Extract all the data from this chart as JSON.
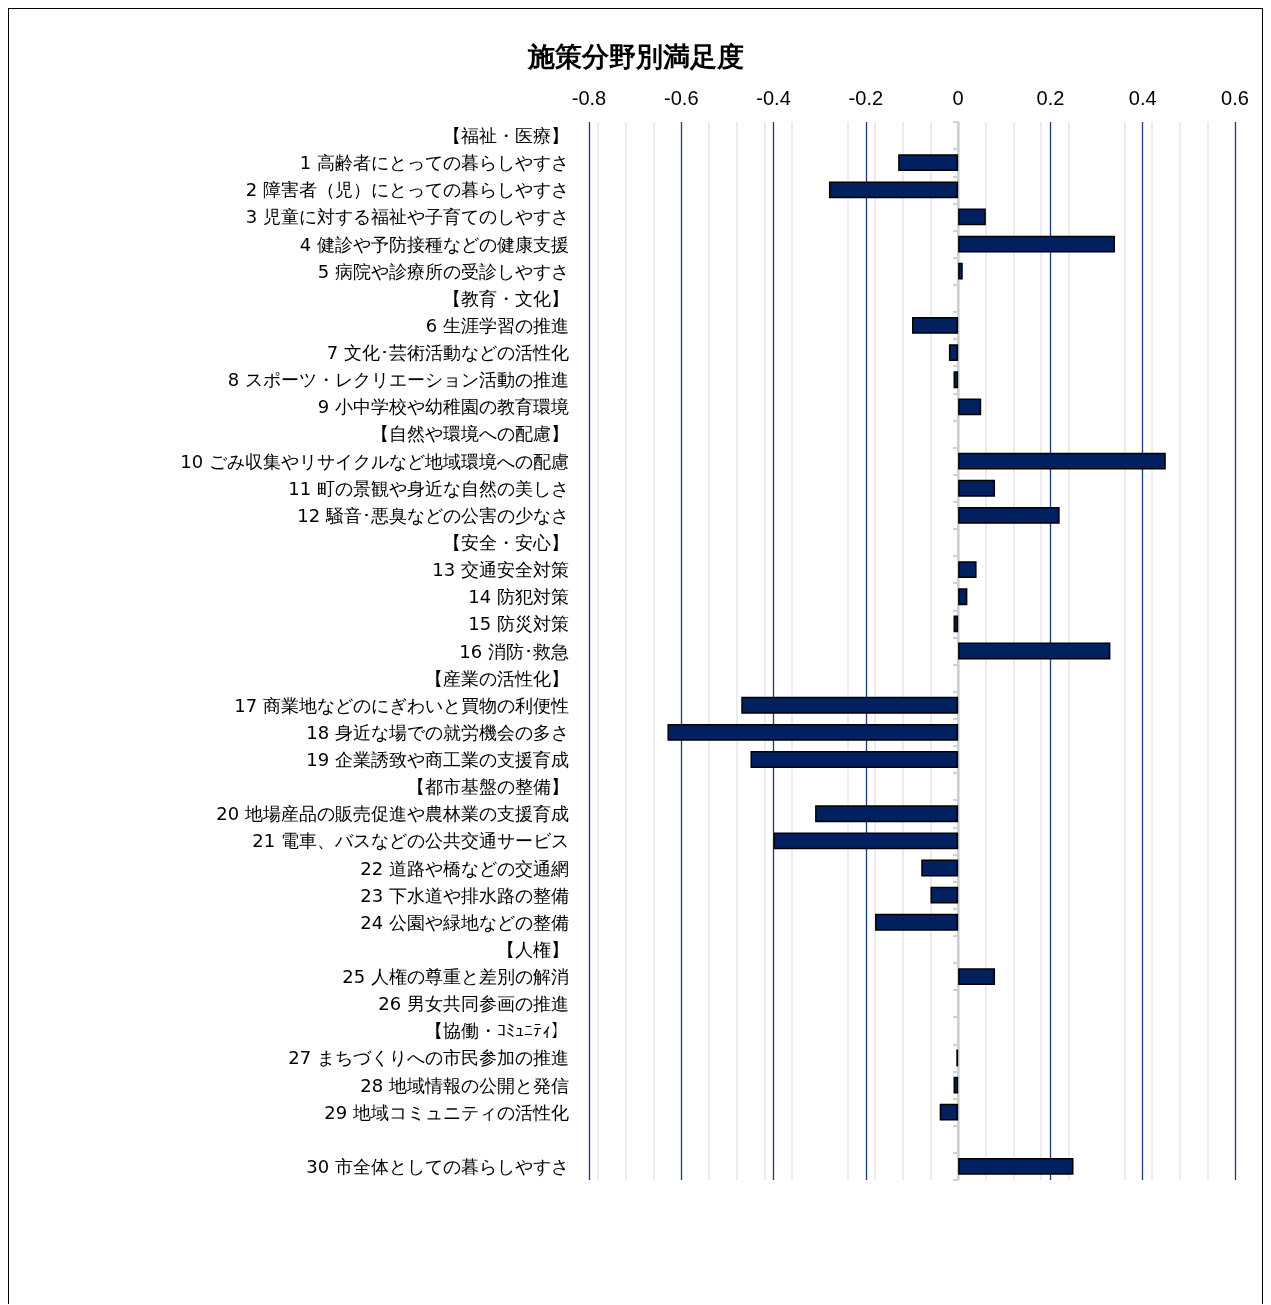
{
  "chart_data": {
    "type": "bar",
    "orientation": "horizontal",
    "title": "施策分野別満足度",
    "categories": [
      "【福祉・医療】",
      "1 高齢者にとっての暮らしやすさ",
      "2 障害者（児）にとっての暮らしやすさ",
      "3 児童に対する福祉や子育てのしやすさ",
      "4 健診や予防接種などの健康支援",
      "5 病院や診療所の受診しやすさ",
      "【教育・文化】",
      "6 生涯学習の推進",
      "7 文化･芸術活動などの活性化",
      "8 スポーツ・レクリエーション活動の推進",
      "9 小中学校や幼稚園の教育環境",
      "【自然や環境への配慮】",
      "10 ごみ収集やリサイクルなど地域環境への配慮",
      "11 町の景観や身近な自然の美しさ",
      "12 騒音･悪臭などの公害の少なさ",
      "【安全・安心】",
      "13 交通安全対策",
      "14 防犯対策",
      "15 防災対策",
      "16 消防･救急",
      "【産業の活性化】",
      "17 商業地などのにぎわいと買物の利便性",
      "18 身近な場での就労機会の多さ",
      "19 企業誘致や商工業の支援育成",
      "【都市基盤の整備】",
      "20 地場産品の販売促進や農林業の支援育成",
      "21 電車、バスなどの公共交通サービス",
      "22 道路や橋などの交通網",
      "23 下水道や排水路の整備",
      "24 公園や緑地などの整備",
      "【人権】",
      "25 人権の尊重と差別の解消",
      "26 男女共同参画の推進",
      "【協働・ｺﾐｭﾆﾃｨ】",
      "27 まちづくりへの市民参加の推進",
      "28 地域情報の公開と発信",
      "29 地域コミュニティの活性化",
      null,
      "30 市全体としての暮らしやすさ"
    ],
    "values": [
      null,
      -0.13,
      -0.28,
      0.06,
      0.34,
      0.01,
      null,
      -0.1,
      -0.02,
      -0.01,
      0.05,
      null,
      0.45,
      0.08,
      0.22,
      null,
      0.04,
      0.02,
      -0.01,
      0.33,
      null,
      -0.47,
      -0.63,
      -0.45,
      null,
      -0.31,
      -0.4,
      -0.08,
      -0.06,
      -0.18,
      null,
      0.08,
      null,
      null,
      -0.004,
      -0.01,
      -0.04,
      null,
      0.25
    ],
    "color": "#002060",
    "xlim": [
      -0.8,
      0.6
    ],
    "xticks": [
      -0.8,
      -0.6,
      -0.4,
      -0.2,
      0,
      0.2,
      0.4,
      0.6
    ],
    "grid": "x"
  }
}
